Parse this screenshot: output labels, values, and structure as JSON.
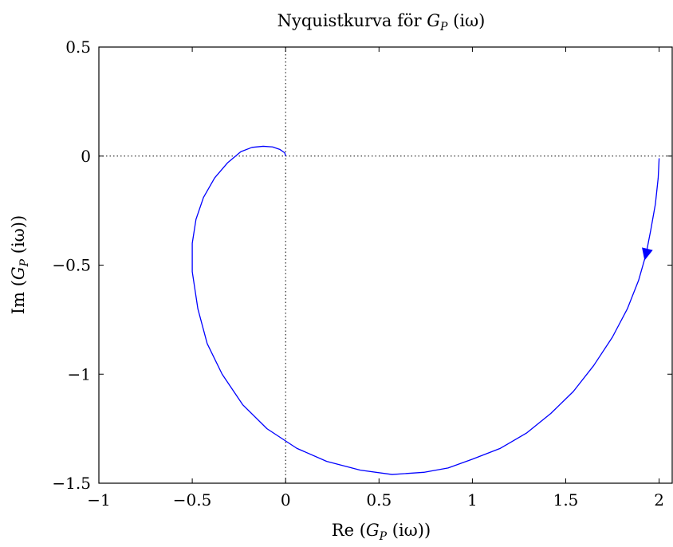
{
  "chart_data": {
    "type": "line",
    "title": "Nyquistkurva för G_P (iω)",
    "title_parts": {
      "prefix": "Nyquistkurva för ",
      "symbol": "G",
      "subscript": "P",
      "argument": " (iω)"
    },
    "xlabel": "Re (G_P (iω))",
    "xlabel_parts": {
      "prefix": "Re (",
      "symbol": "G",
      "subscript": "P",
      "argument": " (iω))"
    },
    "ylabel": "Im (G_P (iω))",
    "ylabel_parts": {
      "prefix": "Im (",
      "symbol": "G",
      "subscript": "P",
      "argument": " (iω))"
    },
    "xlim": [
      -1,
      2.07
    ],
    "ylim": [
      -1.5,
      0.5
    ],
    "xticks": [
      {
        "value": -1,
        "label": "−1"
      },
      {
        "value": -0.5,
        "label": "−0.5"
      },
      {
        "value": 0,
        "label": "0"
      },
      {
        "value": 0.5,
        "label": "0.5"
      },
      {
        "value": 1,
        "label": "1"
      },
      {
        "value": 1.5,
        "label": "1.5"
      },
      {
        "value": 2,
        "label": "2"
      }
    ],
    "yticks": [
      {
        "value": 0.5,
        "label": "0.5"
      },
      {
        "value": 0,
        "label": "0"
      },
      {
        "value": -0.5,
        "label": "−0.5"
      },
      {
        "value": -1,
        "label": "−1"
      },
      {
        "value": -1.5,
        "label": "−1.5"
      }
    ],
    "reference_lines": {
      "x_zero": true,
      "y_zero": true,
      "style": "dotted"
    },
    "grid": false,
    "series": [
      {
        "color": "#0000ff",
        "direction_arrow_at": [
          1.93,
          -0.45
        ],
        "x": [
          2.0,
          1.995,
          1.98,
          1.955,
          1.93,
          1.89,
          1.83,
          1.75,
          1.65,
          1.54,
          1.42,
          1.29,
          1.15,
          1.0,
          0.87,
          0.74,
          0.57,
          0.4,
          0.22,
          0.06,
          -0.1,
          -0.23,
          -0.34,
          -0.42,
          -0.47,
          -0.5,
          -0.5,
          -0.48,
          -0.44,
          -0.38,
          -0.31,
          -0.24,
          -0.18,
          -0.12,
          -0.07,
          -0.03,
          -0.005,
          0.0
        ],
        "y": [
          -0.01,
          -0.1,
          -0.22,
          -0.34,
          -0.45,
          -0.57,
          -0.7,
          -0.83,
          -0.96,
          -1.08,
          -1.18,
          -1.27,
          -1.34,
          -1.39,
          -1.43,
          -1.45,
          -1.46,
          -1.44,
          -1.4,
          -1.34,
          -1.25,
          -1.14,
          -1.0,
          -0.86,
          -0.7,
          -0.53,
          -0.4,
          -0.29,
          -0.19,
          -0.1,
          -0.03,
          0.02,
          0.04,
          0.045,
          0.042,
          0.03,
          0.015,
          0.0
        ]
      }
    ]
  }
}
